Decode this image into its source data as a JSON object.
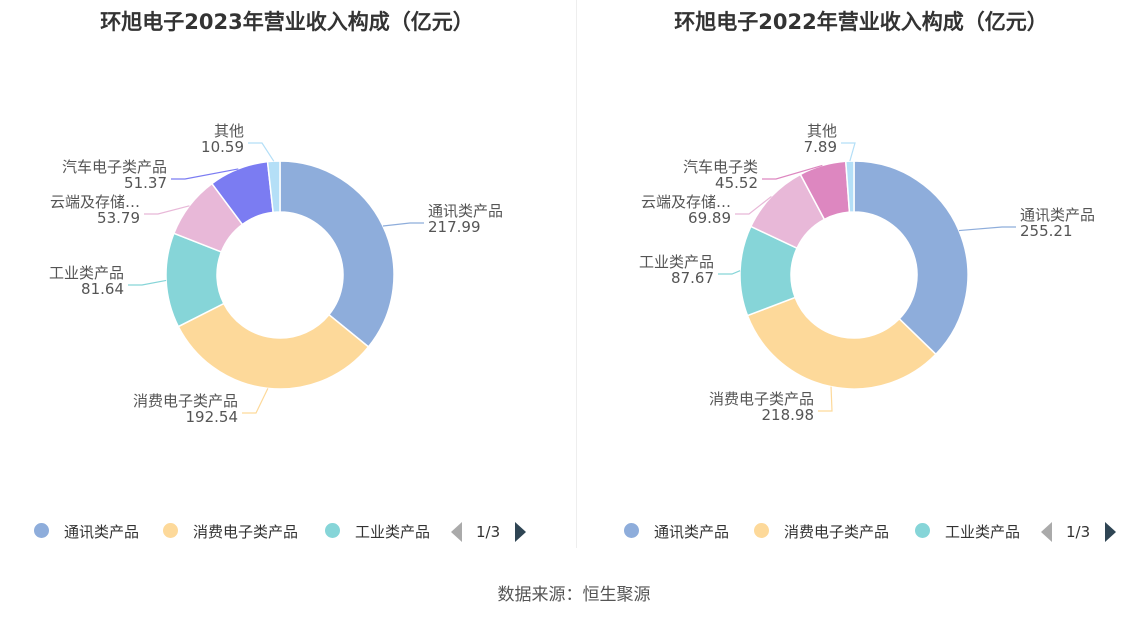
{
  "source_label": "数据来源：恒生聚源",
  "chart_data": [
    {
      "type": "pie",
      "title": "环旭电子2023年营业收入构成（亿元）",
      "categories": [
        "通讯类产品",
        "消费电子类产品",
        "工业类产品",
        "云端及存储…",
        "汽车电子类产品",
        "其他"
      ],
      "values": [
        217.99,
        192.54,
        81.64,
        53.79,
        51.37,
        10.59
      ],
      "value_labels": [
        "217.99",
        "192.54",
        "81.64",
        "53.79",
        "51.37",
        "10.59"
      ],
      "colors": [
        "#8eaddb",
        "#fdd99a",
        "#86d5d8",
        "#e8b8d8",
        "#7b7cf2",
        "#b4dff7"
      ],
      "legend": {
        "position": "bottom",
        "visible_items": [
          "通讯类产品",
          "消费电子类产品",
          "工业类产品"
        ],
        "page": "1/3"
      }
    },
    {
      "type": "pie",
      "title": "环旭电子2022年营业收入构成（亿元）",
      "categories": [
        "通讯类产品",
        "消费电子类产品",
        "工业类产品",
        "云端及存储…",
        "汽车电子类",
        "其他"
      ],
      "values": [
        255.21,
        218.98,
        87.67,
        69.89,
        45.52,
        7.89
      ],
      "value_labels": [
        "255.21",
        "218.98",
        "87.67",
        "69.89",
        "45.52",
        "7.89"
      ],
      "colors": [
        "#8eaddb",
        "#fdd99a",
        "#86d5d8",
        "#e8b8d8",
        "#dd87c0",
        "#b4dff7"
      ],
      "legend": {
        "position": "bottom",
        "visible_items": [
          "通讯类产品",
          "消费电子类产品",
          "工业类产品"
        ],
        "page": "1/3"
      }
    }
  ]
}
